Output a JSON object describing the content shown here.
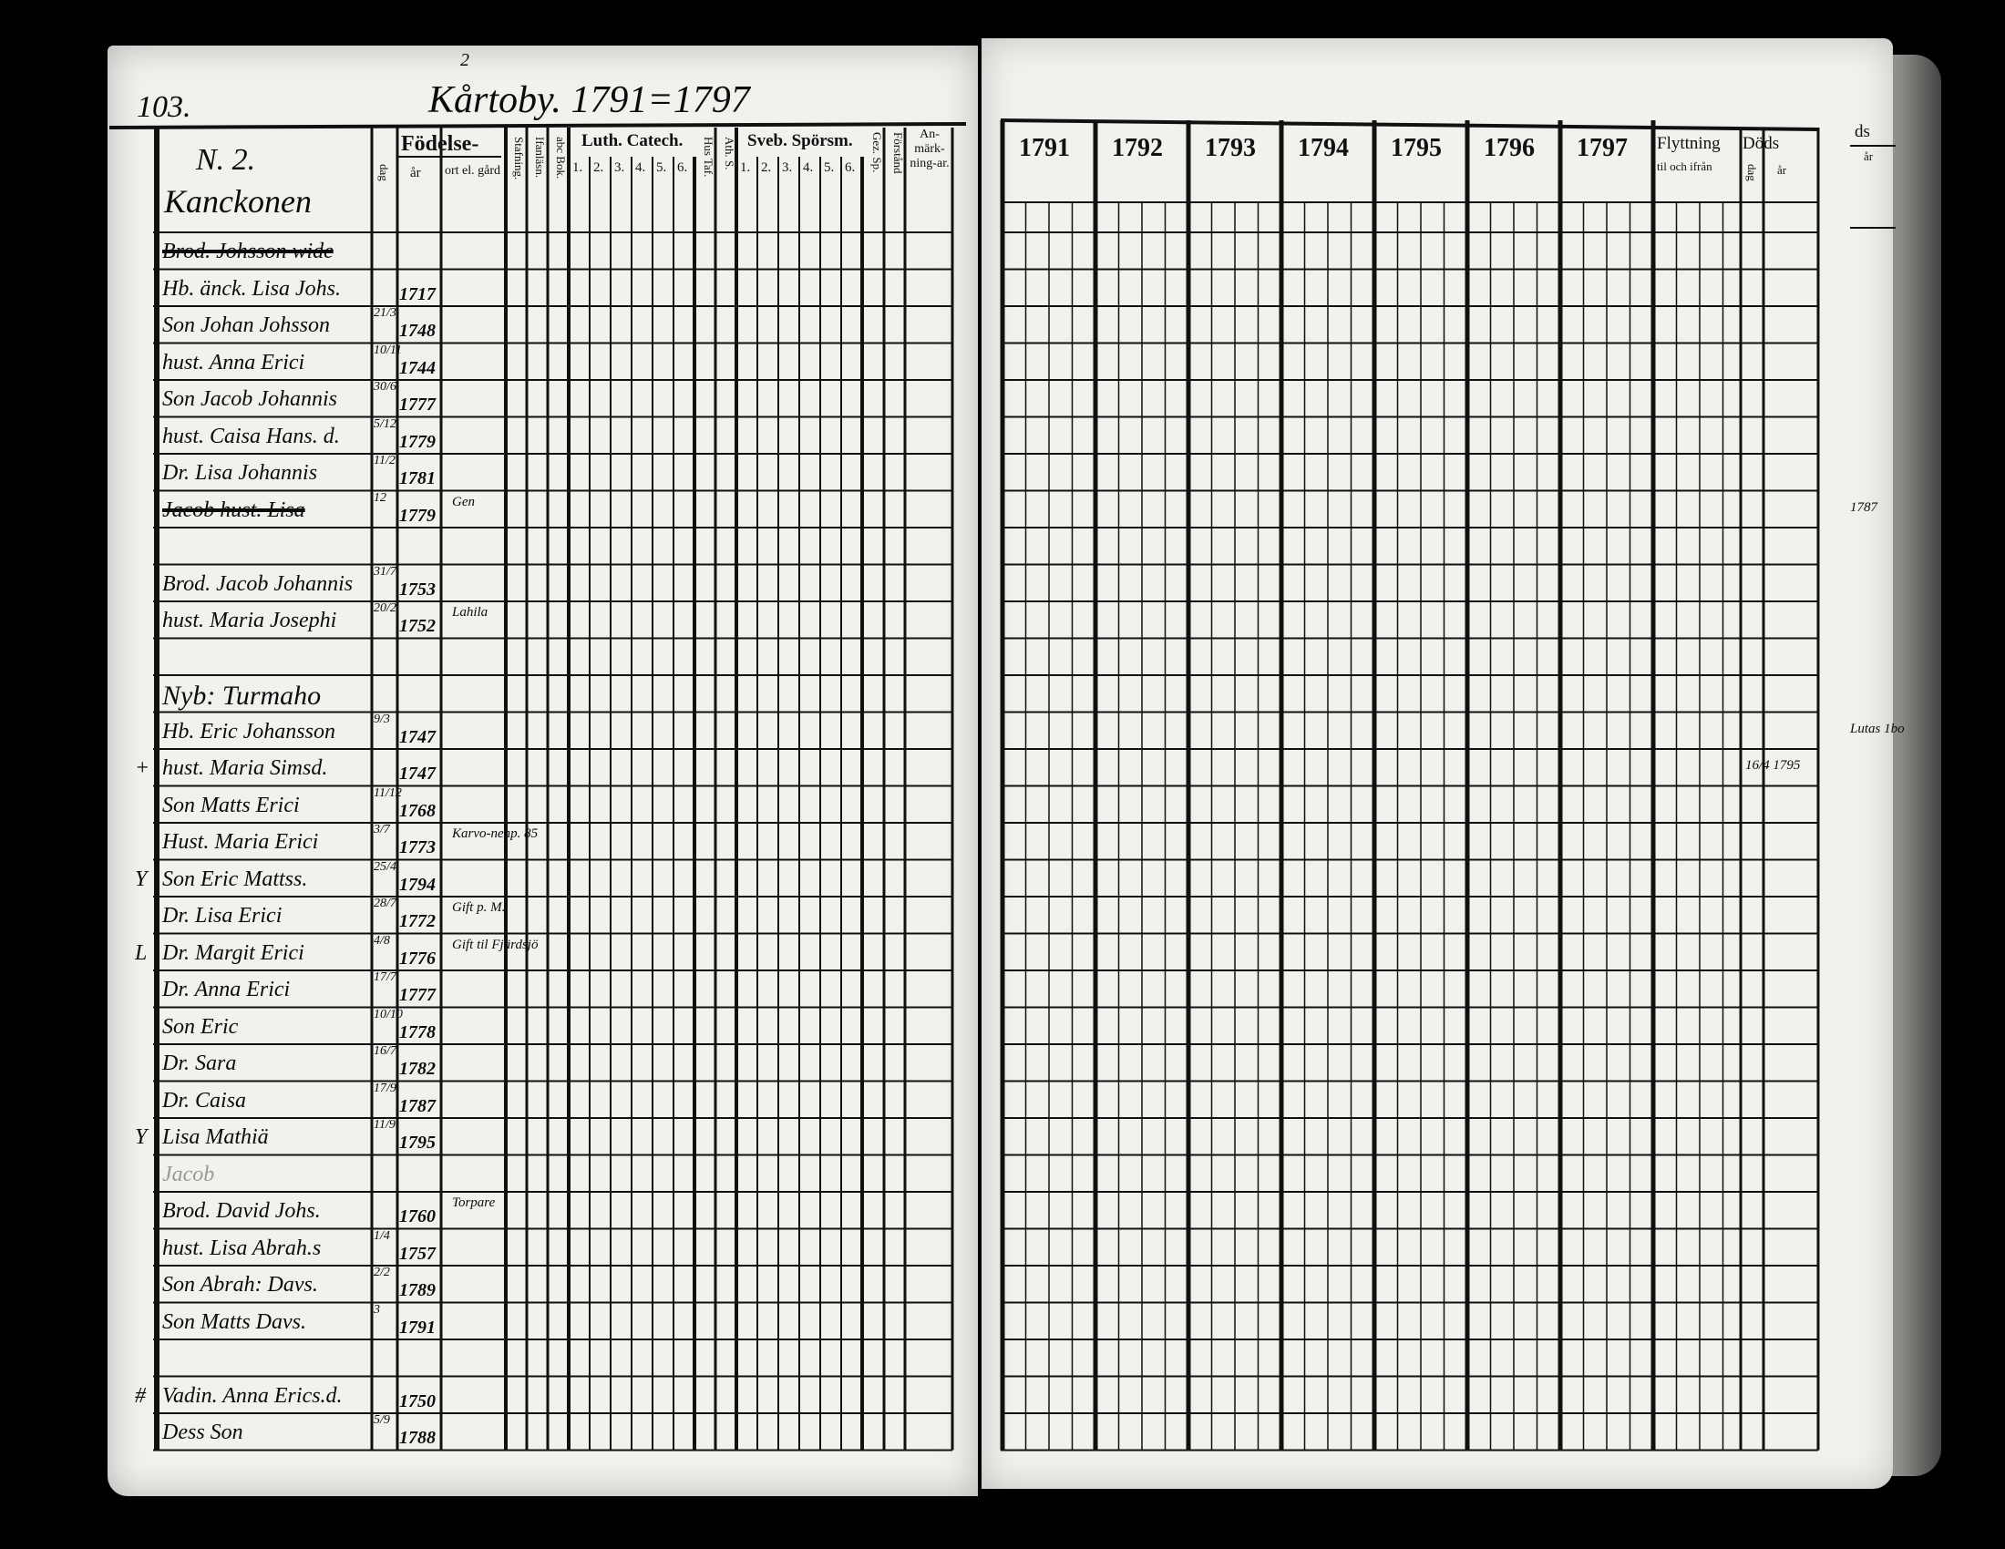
{
  "left_page": {
    "page_number": "103.",
    "title_superscript": "2",
    "title": "Kårtoby. 1791=1797",
    "household_number": "N. 2.",
    "household_name": "Kanckonen",
    "headers": {
      "fodelse": "Födelse-",
      "dag": "dag",
      "ar": "år",
      "ort": "ort el. gård",
      "stafning": "Stafning.",
      "innanlasn": "Ifanläsn.",
      "abc_bok": "abc Bok.",
      "luth_catech": "Luth. Catech.",
      "luth_parts": [
        "1.",
        "2.",
        "3.",
        "4.",
        "5.",
        "6."
      ],
      "hus_taf": "Hus Taf.",
      "ath_s": "Ath. S.",
      "sveb_sporsm": "Sveb. Spörsm.",
      "sveb_parts": [
        "1.",
        "2.",
        "3.",
        "4.",
        "5.",
        "6."
      ],
      "gez_sp": "Gez. Sp.",
      "forstand": "Förstånd",
      "anmarkningar": "An-märk-ning-ar."
    },
    "rows": [
      {
        "name": "Brod. Johsson wide",
        "day": "",
        "year": "",
        "place": "",
        "struck": true
      },
      {
        "name": "Hb. änck. Lisa Johs.",
        "day": "",
        "year": "1717",
        "place": ""
      },
      {
        "name": "Son Johan Johsson",
        "day": "21/3",
        "year": "1748",
        "place": ""
      },
      {
        "name": "hust. Anna Erici",
        "day": "10/11",
        "year": "1744",
        "place": ""
      },
      {
        "name": "Son Jacob Johannis",
        "day": "30/6",
        "year": "1777",
        "place": ""
      },
      {
        "name": "hust. Caisa Hans. d.",
        "day": "5/12",
        "year": "1779",
        "place": ""
      },
      {
        "name": "Dr. Lisa Johannis",
        "day": "11/2",
        "year": "1781",
        "place": ""
      },
      {
        "name": "Jacob hust. Lisa",
        "day": "12",
        "year": "1779",
        "place": "Gen",
        "struck": true
      },
      {
        "name": "",
        "day": "",
        "year": "",
        "place": ""
      },
      {
        "name": "Brod. Jacob Johannis",
        "day": "31/7",
        "year": "1753",
        "place": ""
      },
      {
        "name": "hust. Maria Josephi",
        "day": "20/2",
        "year": "1752",
        "place": "Lahila"
      },
      {
        "name": "",
        "day": "",
        "year": "",
        "place": ""
      },
      {
        "name": "Nyb: Turmaho",
        "day": "",
        "year": "",
        "place": ""
      },
      {
        "name": "Hb. Eric Johansson",
        "day": "9/3",
        "year": "1747",
        "place": ""
      },
      {
        "name": "hust. Maria Simsd.",
        "day": "",
        "year": "1747",
        "place": "",
        "margin": "+"
      },
      {
        "name": "Son Matts Erici",
        "day": "11/12",
        "year": "1768",
        "place": ""
      },
      {
        "name": "Hust. Maria Erici",
        "day": "3/7",
        "year": "1773",
        "place": "Karvo-nenp. 85"
      },
      {
        "name": "Son Eric Mattss.",
        "day": "25/4",
        "year": "1794",
        "place": "",
        "margin": "Y"
      },
      {
        "name": "Dr. Lisa Erici",
        "day": "28/7",
        "year": "1772",
        "place": "Gift p. M."
      },
      {
        "name": "Dr. Margit Erici",
        "day": "4/8",
        "year": "1776",
        "place": "Gift til Fjärdsjö",
        "margin": "L"
      },
      {
        "name": "Dr. Anna Erici",
        "day": "17/7",
        "year": "1777",
        "place": ""
      },
      {
        "name": "Son Eric",
        "day": "10/10",
        "year": "1778",
        "place": ""
      },
      {
        "name": "Dr. Sara",
        "day": "16/7",
        "year": "1782",
        "place": ""
      },
      {
        "name": "Dr. Caisa",
        "day": "17/9",
        "year": "1787",
        "place": ""
      },
      {
        "name": "Lisa Mathiä",
        "day": "11/9",
        "year": "1795",
        "place": "",
        "margin": "Y"
      },
      {
        "name": "Jacob",
        "day": "",
        "year": "",
        "place": "",
        "faint": true
      },
      {
        "name": "Brod. David Johs.",
        "day": "",
        "year": "1760",
        "place": "Torpare"
      },
      {
        "name": "hust. Lisa Abrah.s",
        "day": "1/4",
        "year": "1757",
        "place": ""
      },
      {
        "name": "Son Abrah: Davs.",
        "day": "2/2",
        "year": "1789",
        "place": ""
      },
      {
        "name": "Son Matts Davs.",
        "day": "3",
        "year": "1791",
        "place": ""
      },
      {
        "name": "",
        "day": "",
        "year": "",
        "place": ""
      },
      {
        "name": "Vadin. Anna Erics.d.",
        "day": "",
        "year": "1750",
        "place": "",
        "margin": "#"
      },
      {
        "name": "Dess Son",
        "day": "5/9",
        "year": "1788",
        "place": ""
      }
    ]
  },
  "right_page": {
    "years": [
      "1791",
      "1792",
      "1793",
      "1794",
      "1795",
      "1796",
      "1797"
    ],
    "flyttning": "Flyttning",
    "flyttning_sub": "til och ifrån",
    "dods": "Döds",
    "dods_dag": "dag",
    "dods_ar": "år",
    "edge_dods": "ds",
    "edge_ar": "år",
    "notes": [
      {
        "row": 7,
        "column": "edge",
        "text": "1787"
      },
      {
        "row": 14,
        "column": "dods",
        "text": "16/4 1795"
      },
      {
        "row": 13,
        "column": "edge",
        "text": "Lutas 1bo"
      }
    ]
  }
}
